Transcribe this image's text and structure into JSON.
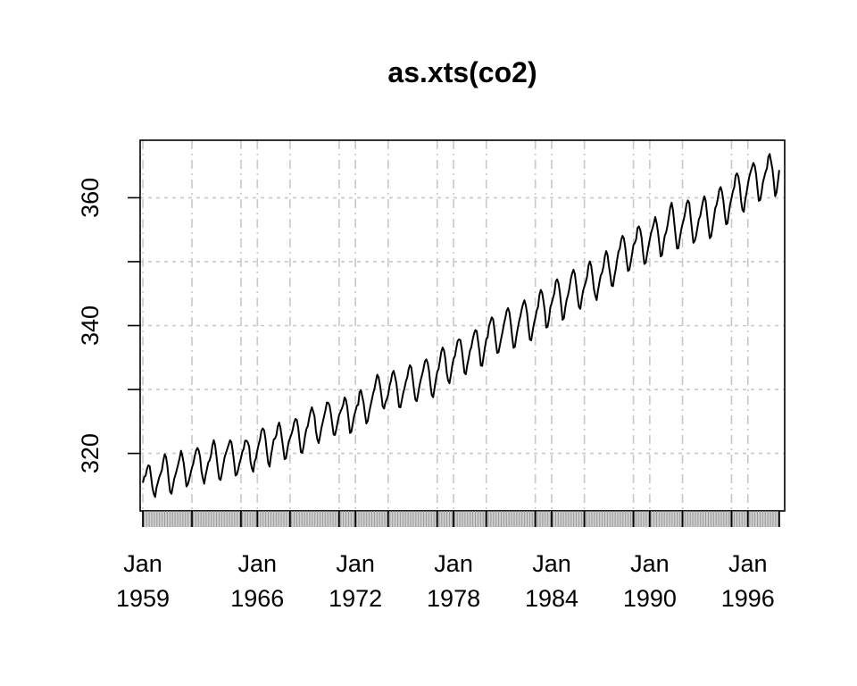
{
  "chart_data": {
    "type": "line",
    "title": "as.xts(co2)",
    "xlabel": "",
    "ylabel": "",
    "series": [
      {
        "values": [
          315.42,
          316.31,
          316.5,
          317.56,
          318.13,
          318.0,
          316.39,
          314.65,
          313.68,
          313.18,
          314.66,
          315.43,
          316.27,
          316.81,
          317.42,
          318.87,
          319.87,
          319.43,
          318.01,
          315.74,
          314.0,
          313.68,
          314.84,
          316.03,
          316.73,
          317.54,
          318.38,
          319.31,
          320.42,
          319.61,
          318.42,
          316.63,
          314.83,
          315.16,
          315.94,
          316.85,
          317.78,
          318.4,
          319.53,
          320.42,
          320.85,
          320.45,
          319.45,
          317.25,
          316.11,
          315.27,
          316.53,
          317.53,
          318.58,
          318.92,
          319.7,
          321.22,
          322.08,
          321.31,
          319.58,
          317.61,
          316.05,
          315.83,
          316.91,
          318.2,
          319.41,
          320.07,
          320.74,
          321.4,
          322.06,
          321.73,
          320.27,
          318.54,
          316.54,
          316.71,
          317.53,
          318.55,
          319.27,
          320.28,
          320.73,
          321.97,
          322.0,
          321.71,
          321.05,
          318.71,
          317.66,
          317.14,
          318.7,
          319.25,
          320.46,
          321.43,
          322.23,
          323.54,
          323.91,
          323.59,
          322.24,
          320.2,
          318.48,
          317.94,
          319.63,
          320.87,
          322.17,
          322.34,
          322.88,
          324.25,
          324.83,
          323.93,
          322.38,
          320.76,
          319.1,
          319.24,
          320.56,
          321.8,
          322.4,
          322.99,
          323.73,
          324.86,
          325.4,
          325.2,
          323.98,
          321.95,
          320.18,
          320.09,
          321.16,
          322.74,
          323.83,
          324.26,
          325.47,
          326.5,
          327.21,
          326.54,
          325.72,
          323.5,
          322.22,
          321.62,
          322.69,
          323.95,
          324.89,
          325.82,
          326.77,
          327.97,
          327.91,
          327.5,
          326.18,
          324.53,
          322.93,
          322.9,
          323.85,
          324.96,
          326.01,
          326.51,
          327.01,
          327.62,
          328.76,
          328.4,
          327.2,
          325.27,
          323.2,
          323.4,
          324.63,
          325.85,
          326.6,
          327.47,
          327.58,
          329.56,
          329.9,
          328.92,
          327.88,
          326.16,
          324.68,
          325.04,
          326.34,
          327.39,
          328.37,
          329.4,
          330.14,
          331.33,
          332.31,
          331.9,
          330.7,
          329.15,
          327.35,
          327.02,
          327.99,
          328.48,
          329.18,
          330.55,
          331.32,
          332.48,
          332.92,
          332.08,
          331.01,
          329.23,
          327.27,
          327.21,
          328.29,
          329.41,
          330.23,
          331.25,
          331.87,
          333.14,
          333.8,
          333.43,
          331.73,
          329.9,
          328.4,
          328.17,
          329.32,
          330.59,
          331.58,
          332.39,
          333.33,
          334.41,
          334.71,
          334.17,
          332.89,
          330.77,
          329.14,
          328.78,
          330.14,
          331.52,
          332.75,
          333.24,
          334.53,
          335.9,
          336.57,
          336.1,
          334.76,
          332.59,
          331.42,
          330.98,
          332.24,
          333.68,
          334.8,
          335.22,
          336.47,
          337.59,
          337.84,
          337.72,
          336.37,
          334.51,
          332.6,
          332.38,
          333.75,
          334.78,
          336.05,
          336.59,
          337.79,
          338.71,
          339.3,
          339.12,
          337.56,
          335.92,
          333.75,
          333.7,
          335.12,
          336.56,
          337.84,
          338.19,
          339.91,
          340.6,
          341.29,
          341.0,
          339.39,
          337.43,
          335.72,
          335.84,
          336.93,
          338.04,
          339.06,
          340.3,
          341.21,
          342.33,
          342.74,
          342.08,
          340.32,
          338.26,
          336.52,
          336.68,
          338.19,
          339.44,
          340.57,
          341.44,
          342.53,
          343.39,
          343.96,
          343.18,
          341.88,
          339.65,
          337.81,
          337.69,
          339.09,
          340.32,
          341.2,
          342.35,
          342.93,
          344.77,
          345.58,
          345.14,
          343.81,
          342.21,
          339.69,
          339.82,
          340.98,
          342.82,
          343.52,
          344.33,
          345.11,
          346.88,
          347.25,
          346.62,
          345.22,
          343.11,
          340.9,
          341.18,
          342.8,
          344.04,
          344.79,
          345.82,
          347.25,
          348.17,
          348.74,
          348.07,
          346.38,
          344.51,
          342.92,
          342.62,
          344.06,
          345.38,
          346.11,
          346.78,
          347.68,
          349.37,
          350.03,
          349.37,
          347.76,
          345.73,
          344.68,
          343.99,
          345.48,
          346.72,
          347.84,
          348.29,
          349.23,
          350.8,
          351.66,
          351.07,
          349.33,
          347.92,
          346.27,
          346.18,
          347.64,
          348.78,
          350.25,
          351.54,
          352.05,
          353.41,
          354.04,
          353.62,
          352.22,
          350.27,
          348.55,
          348.72,
          349.91,
          351.18,
          352.6,
          352.92,
          353.53,
          355.26,
          355.52,
          354.97,
          353.75,
          351.52,
          349.64,
          349.83,
          351.14,
          352.37,
          353.5,
          354.55,
          355.23,
          356.04,
          357.0,
          356.07,
          354.67,
          352.76,
          350.82,
          351.04,
          352.69,
          354.07,
          354.59,
          355.63,
          357.03,
          358.48,
          359.22,
          358.12,
          356.06,
          353.92,
          352.05,
          352.11,
          353.64,
          354.89,
          355.88,
          356.63,
          357.72,
          359.07,
          359.58,
          359.17,
          356.94,
          354.92,
          352.94,
          353.23,
          354.09,
          355.33,
          356.63,
          357.1,
          358.32,
          359.41,
          360.23,
          359.55,
          357.53,
          355.48,
          353.67,
          353.95,
          355.3,
          356.78,
          358.34,
          358.89,
          359.95,
          361.25,
          361.67,
          360.94,
          359.55,
          357.49,
          355.84,
          356.0,
          357.59,
          359.05,
          359.98,
          361.03,
          361.66,
          363.48,
          363.82,
          363.3,
          361.94,
          359.5,
          358.11,
          357.8,
          359.61,
          360.74,
          362.09,
          363.29,
          364.06,
          364.76,
          365.45,
          365.01,
          363.7,
          361.54,
          359.51,
          359.65,
          360.8,
          362.38,
          363.23,
          364.06,
          364.61,
          366.4,
          366.84,
          365.68,
          364.52,
          362.57,
          360.24,
          360.83,
          362.49,
          364.34
        ]
      }
    ],
    "x_start": "Jan 1959",
    "x_frequency": "monthly",
    "x_tick_labels": [
      {
        "month": "Jan",
        "year": "1959"
      },
      {
        "month": "Jan",
        "year": "1966"
      },
      {
        "month": "Jan",
        "year": "1972"
      },
      {
        "month": "Jan",
        "year": "1978"
      },
      {
        "month": "Jan",
        "year": "1984"
      },
      {
        "month": "Jan",
        "year": "1990"
      },
      {
        "month": "Jan",
        "year": "1996"
      }
    ],
    "y_ticks": [
      320,
      340,
      360
    ],
    "y_minor_gridlines": [
      330,
      350
    ],
    "ylim": [
      311,
      369
    ],
    "xlim": [
      "1958-11",
      "1998-04"
    ],
    "grid": true,
    "grid_color": "#c8c8c8",
    "line_color": "#000000",
    "legend": "none"
  }
}
